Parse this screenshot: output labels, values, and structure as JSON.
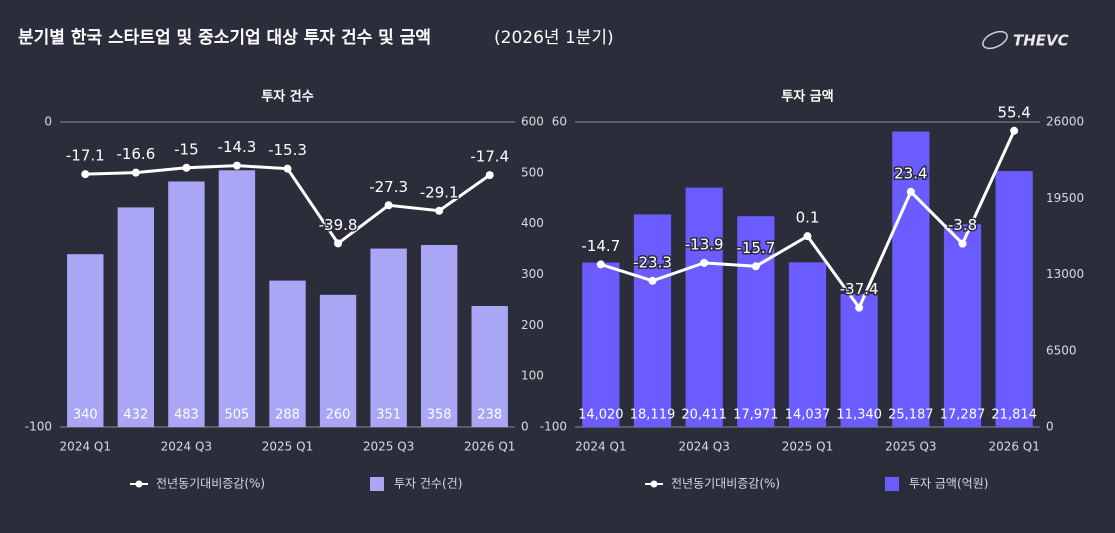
{
  "title": "분기별 한국 스타트업 및 중소기업 대상 투자 건수 및 금액",
  "title_note": "(2026년 1분기)",
  "logo": "THEVC",
  "chart_data": [
    {
      "type": "combo",
      "title": "투자 건수",
      "categories": [
        "2024 Q1",
        null,
        "2024 Q3",
        null,
        "2025 Q1",
        null,
        "2025 Q3",
        null,
        "2026 Q1"
      ],
      "ylim": [
        -100,
        0
      ],
      "yticks": [
        -100,
        0
      ],
      "y2lim": [
        0,
        600
      ],
      "y2ticks": [
        0,
        100,
        200,
        300,
        400,
        500,
        600
      ],
      "series": [
        {
          "name": "전년동기대비증감(%)",
          "type": "line",
          "color": "#ffffff",
          "values": [
            -17.1,
            -16.6,
            -15,
            -14.3,
            -15.3,
            -39.8,
            -27.3,
            -29.1,
            -17.4
          ]
        },
        {
          "name": "투자 건수(건)",
          "type": "bar",
          "axis": "y2",
          "color": "#a9a6f6",
          "values": [
            340,
            432,
            483,
            505,
            288,
            260,
            351,
            358,
            238
          ]
        }
      ]
    },
    {
      "type": "combo",
      "title": "투자 금액",
      "categories": [
        "2024 Q1",
        null,
        "2024 Q3",
        null,
        "2025 Q1",
        null,
        "2025 Q3",
        null,
        "2026 Q1"
      ],
      "ylim": [
        -100,
        60
      ],
      "yticks": [
        -100,
        60
      ],
      "y2lim": [
        0,
        26000
      ],
      "y2ticks": [
        0,
        6500,
        13000,
        19500,
        26000
      ],
      "series": [
        {
          "name": "전년동기대비증감(%)",
          "type": "line",
          "color": "#ffffff",
          "values": [
            -14.7,
            -23.3,
            -13.9,
            -15.7,
            0.1,
            -37.4,
            23.4,
            -3.8,
            55.4
          ]
        },
        {
          "name": "투자 금액(억원)",
          "type": "bar",
          "axis": "y2",
          "color": "#6a5cff",
          "values": [
            14020,
            18119,
            20411,
            17971,
            14037,
            11340,
            25187,
            17287,
            21814
          ],
          "value_labels": [
            "14,020",
            "18,119",
            "20,411",
            "17,971",
            "14,037",
            "11,340",
            "25,187",
            "17,287",
            "21,814"
          ]
        }
      ]
    }
  ]
}
